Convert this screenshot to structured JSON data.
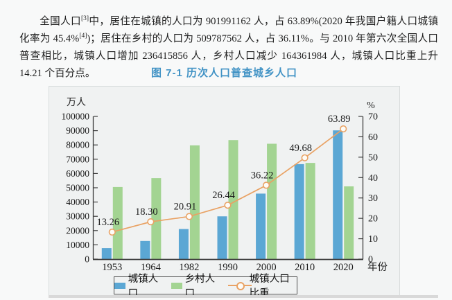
{
  "paragraph": {
    "part1": "全国人口",
    "sup1": "[3]",
    "part2": "中，居住在城镇的人口为 901991162 人，占 63.89%(2020 年我国户籍人口城镇化率为 45.4%",
    "sup2": "[4]",
    "part3": ")；居住在乡村的人口为 509787562 人，占 36.11%。与 2010 年第六次全国人口普查相比，城镇人口增加 236415856 人，乡村人口减少 164361984 人，城镇人口比重上升 14.21 个百分点。"
  },
  "figure_title": "图 7-1 历次人口普查城乡人口",
  "chart_data": {
    "type": "bar+line",
    "title": "图 7-1 历次人口普查城乡人口",
    "categories": [
      "1953",
      "1964",
      "1982",
      "1990",
      "2000",
      "2010",
      "2020"
    ],
    "series": [
      {
        "name": "城镇人口",
        "type": "bar",
        "axis": "left",
        "color": "#5ba7d4",
        "values": [
          7726,
          12710,
          21082,
          29971,
          45906,
          66558,
          90199
        ]
      },
      {
        "name": "乡村人口",
        "type": "bar",
        "axis": "left",
        "color": "#a3d492",
        "values": [
          50534,
          56748,
          79736,
          83397,
          80837,
          67415,
          50979
        ]
      },
      {
        "name": "城镇人口比重",
        "type": "line",
        "axis": "right",
        "color": "#e9a264",
        "values": [
          13.26,
          18.3,
          20.91,
          26.44,
          36.22,
          49.68,
          63.89
        ],
        "labels": [
          "13.26",
          "18.30",
          "20.91",
          "26.44",
          "36.22",
          "49.68",
          "63.89"
        ]
      }
    ],
    "left_axis": {
      "title": "万人",
      "min": 0,
      "max": 100000,
      "step": 10000
    },
    "right_axis": {
      "title": "%",
      "min": 0,
      "max": 70,
      "step": 10
    },
    "xlabel": "年份",
    "grid": false,
    "legend_position": "bottom",
    "legend": [
      "城镇人口",
      "乡村人口",
      "城镇人口比重"
    ],
    "colors": {
      "axis": "#3d3d3d",
      "tick_text": "#1a1a1a",
      "marker_fill": "#fdfcf8",
      "panel_bg": "#f0f2f2"
    }
  }
}
